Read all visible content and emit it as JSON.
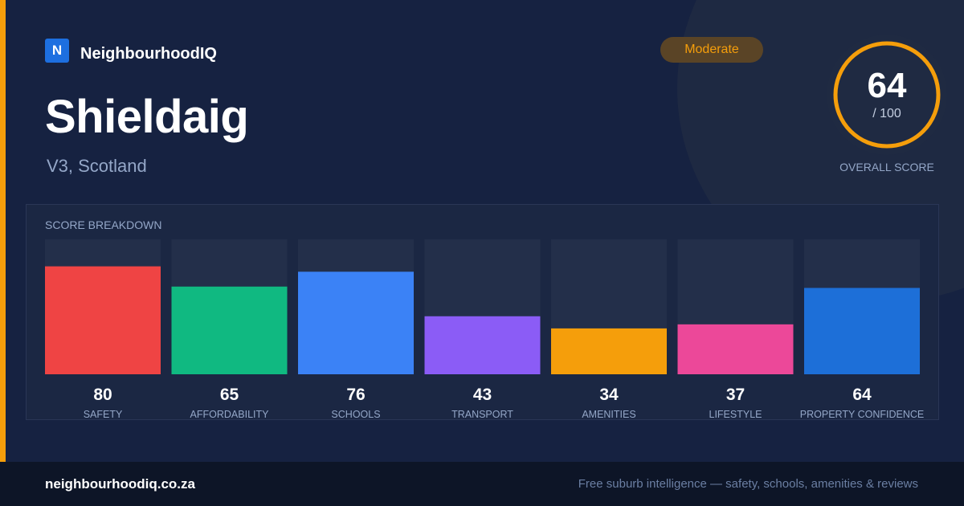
{
  "brand": {
    "logo_letter": "N",
    "name": "NeighbourhoodIQ"
  },
  "location": {
    "name": "Shieldaig",
    "region": "V3, Scotland"
  },
  "rating_badge": {
    "label": "Moderate",
    "color": "#f59e0b"
  },
  "overall": {
    "score": "64",
    "max": "/ 100",
    "label": "OVERALL SCORE",
    "fraction": 0.64,
    "ring_color": "#f59e0b"
  },
  "breakdown": {
    "title": "SCORE BREAKDOWN"
  },
  "chart_data": {
    "type": "bar",
    "title": "SCORE BREAKDOWN",
    "categories": [
      "SAFETY",
      "AFFORDABILITY",
      "SCHOOLS",
      "TRANSPORT",
      "AMENITIES",
      "LIFESTYLE",
      "PROPERTY CONFIDENCE"
    ],
    "values": [
      80,
      65,
      76,
      43,
      34,
      37,
      64
    ],
    "colors": [
      "#ef4444",
      "#10b981",
      "#3b82f6",
      "#8b5cf6",
      "#f59e0b",
      "#ec4899",
      "#1d6fd8"
    ],
    "ylim": [
      0,
      100
    ],
    "grid": false,
    "legend": "none"
  },
  "footer": {
    "url": "neighbourhoodiq.co.za",
    "tagline": "Free suburb intelligence — safety, schools, amenities & reviews"
  }
}
